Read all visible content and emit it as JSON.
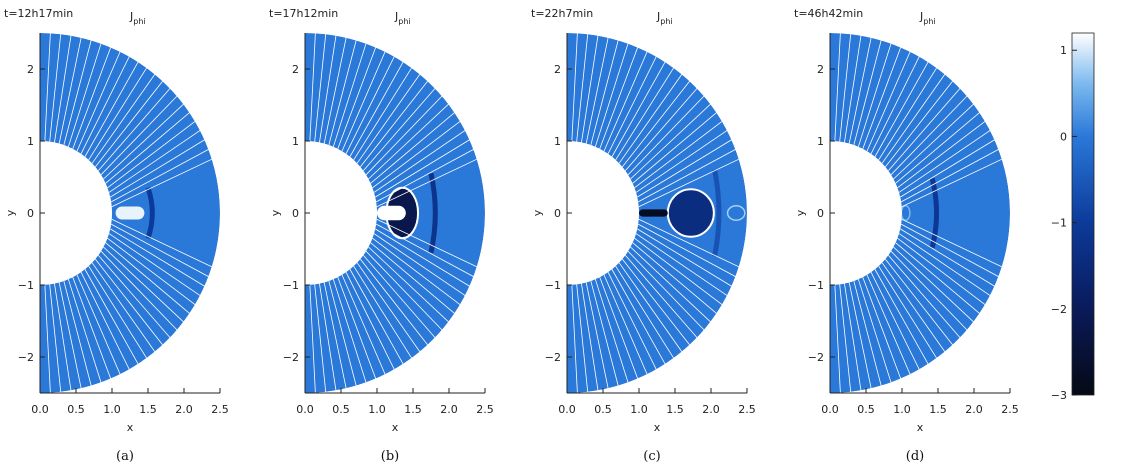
{
  "chart_data": {
    "type": "heatmap",
    "variable": "J_phi",
    "colormap": {
      "min": -3,
      "max": 1.2,
      "stops": [
        {
          "v": -3.0,
          "color": "#050a14"
        },
        {
          "v": -2.0,
          "color": "#0a1a5a"
        },
        {
          "v": -1.0,
          "color": "#0c3a9a"
        },
        {
          "v": 0.0,
          "color": "#2a78d8"
        },
        {
          "v": 0.6,
          "color": "#7ab8ee"
        },
        {
          "v": 1.2,
          "color": "#ffffff"
        }
      ],
      "ticks": [
        1,
        0,
        -1,
        -2,
        -3
      ],
      "tick_labels": [
        "1",
        "0",
        "−1",
        "−2",
        "−3"
      ]
    },
    "panels": [
      {
        "caption": "(a)",
        "time": "t=12h17min",
        "title": "J",
        "title_sub": "phi",
        "xlabel": "x",
        "ylabel": "y",
        "xlim": [
          0,
          2.5
        ],
        "ylim": [
          -2.5,
          2.5
        ],
        "xticks": [
          0.0,
          0.5,
          1.0,
          1.5,
          2.0,
          2.5
        ],
        "xtick_labels": [
          "0.0",
          "0.5",
          "1.0",
          "1.5",
          "2.0",
          "2.5"
        ],
        "yticks": [
          2,
          1,
          0,
          -1,
          -2
        ],
        "ytick_labels": [
          "2",
          "1",
          "0",
          "−1",
          "−2"
        ],
        "inner_radius": 1.0,
        "outer_radius": 2.5,
        "features": [
          {
            "kind": "current_sheet",
            "x0": 1.05,
            "x1": 1.45,
            "half_width": 0.09,
            "value": 1.1
          },
          {
            "kind": "dark_band",
            "x": 1.5,
            "half_height": 0.35,
            "value": -1.0
          }
        ]
      },
      {
        "caption": "(b)",
        "time": "t=17h12min",
        "title": "J",
        "title_sub": "phi",
        "xlabel": "x",
        "ylabel": "y",
        "xlim": [
          0,
          2.5
        ],
        "ylim": [
          -2.5,
          2.5
        ],
        "xticks": [
          0.0,
          0.5,
          1.0,
          1.5,
          2.0,
          2.5
        ],
        "xtick_labels": [
          "0.0",
          "0.5",
          "1.0",
          "1.5",
          "2.0",
          "2.5"
        ],
        "yticks": [
          2,
          1,
          0,
          -1,
          -2
        ],
        "ytick_labels": [
          "2",
          "1",
          "0",
          "−1",
          "−2"
        ],
        "inner_radius": 1.0,
        "outer_radius": 2.5,
        "features": [
          {
            "kind": "bubble",
            "cx": 1.35,
            "cy": 0.0,
            "rx": 0.22,
            "ry": 0.35,
            "value": -2.2
          },
          {
            "kind": "current_sheet",
            "x0": 1.0,
            "x1": 1.4,
            "half_width": 0.1,
            "value": 1.2
          },
          {
            "kind": "dark_band",
            "x": 1.75,
            "half_height": 0.55,
            "value": -1.2
          }
        ]
      },
      {
        "caption": "(c)",
        "time": "t=22h7min",
        "title": "J",
        "title_sub": "phi",
        "xlabel": "x",
        "ylabel": "y",
        "xlim": [
          0,
          2.5
        ],
        "ylim": [
          -2.5,
          2.5
        ],
        "xticks": [
          0.0,
          0.5,
          1.0,
          1.5,
          2.0,
          2.5
        ],
        "xtick_labels": [
          "0.0",
          "0.5",
          "1.0",
          "1.5",
          "2.0",
          "2.5"
        ],
        "yticks": [
          2,
          1,
          0,
          -1,
          -2
        ],
        "ytick_labels": [
          "2",
          "1",
          "0",
          "−1",
          "−2"
        ],
        "inner_radius": 1.0,
        "outer_radius": 2.5,
        "features": [
          {
            "kind": "bubble",
            "cx": 1.72,
            "cy": 0.0,
            "rx": 0.32,
            "ry": 0.33,
            "value": -1.4
          },
          {
            "kind": "current_sheet",
            "x0": 1.0,
            "x1": 1.4,
            "half_width": 0.05,
            "value": -2.8
          },
          {
            "kind": "ring",
            "cx": 2.35,
            "cy": 0.0,
            "rx": 0.12,
            "ry": 0.1,
            "value": 0.8
          },
          {
            "kind": "dark_band",
            "x": 2.05,
            "half_height": 0.6,
            "value": -0.6
          }
        ]
      },
      {
        "caption": "(d)",
        "time": "t=46h42min",
        "title": "J",
        "title_sub": "phi",
        "xlabel": "x",
        "ylabel": "y",
        "xlim": [
          0,
          2.5
        ],
        "ylim": [
          -2.5,
          2.5
        ],
        "xticks": [
          0.0,
          0.5,
          1.0,
          1.5,
          2.0,
          2.5
        ],
        "xtick_labels": [
          "0.0",
          "0.5",
          "1.0",
          "1.5",
          "2.0",
          "2.5"
        ],
        "yticks": [
          2,
          1,
          0,
          -1,
          -2
        ],
        "ytick_labels": [
          "2",
          "1",
          "0",
          "−1",
          "−2"
        ],
        "inner_radius": 1.0,
        "outer_radius": 2.5,
        "features": [
          {
            "kind": "dark_band",
            "x": 1.42,
            "half_height": 0.48,
            "value": -1.1
          },
          {
            "kind": "ring",
            "cx": 1.05,
            "cy": 0.0,
            "rx": 0.06,
            "ry": 0.1,
            "value": 0.6
          }
        ]
      }
    ]
  }
}
